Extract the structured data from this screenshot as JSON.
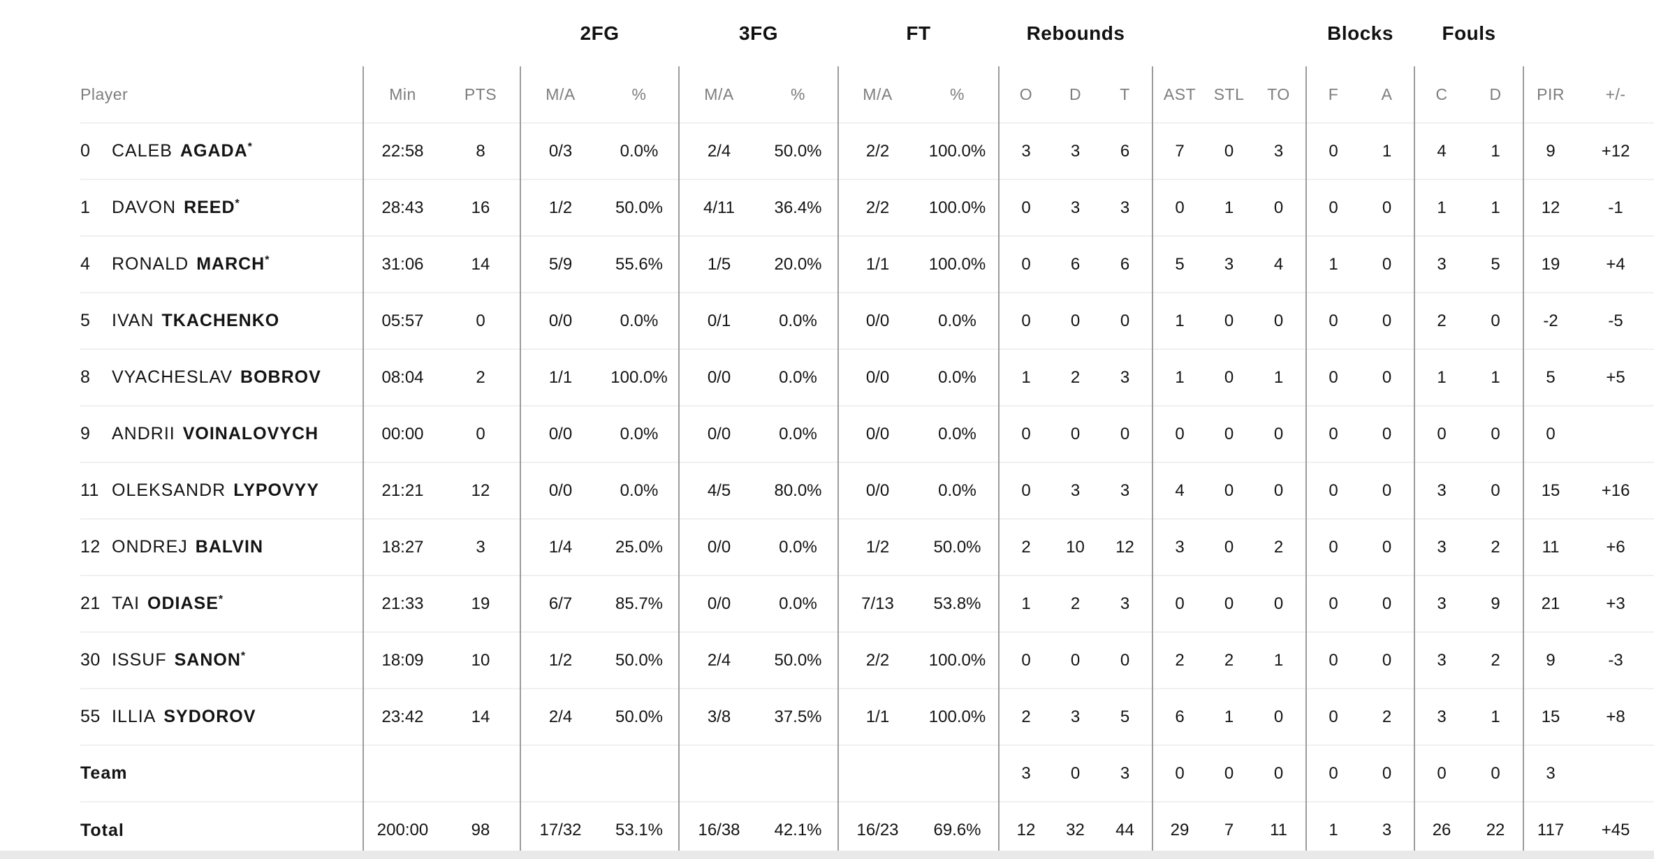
{
  "table": {
    "groups": [
      {
        "label": ""
      },
      {
        "label": "2FG"
      },
      {
        "label": "3FG"
      },
      {
        "label": "FT"
      },
      {
        "label": "Rebounds"
      },
      {
        "label": ""
      },
      {
        "label": "Blocks"
      },
      {
        "label": "Fouls"
      },
      {
        "label": ""
      }
    ],
    "columns": [
      "Player",
      "Min",
      "PTS",
      "M/A",
      "%",
      "M/A",
      "%",
      "M/A",
      "%",
      "O",
      "D",
      "T",
      "AST",
      "STL",
      "TO",
      "F",
      "A",
      "C",
      "D",
      "PIR",
      "+/-"
    ],
    "rows": [
      {
        "num": "0",
        "first": "CALEB",
        "last": "AGADA",
        "star": "*",
        "stats": [
          "22:58",
          "8",
          "0/3",
          "0.0%",
          "2/4",
          "50.0%",
          "2/2",
          "100.0%",
          "3",
          "3",
          "6",
          "7",
          "0",
          "3",
          "0",
          "1",
          "4",
          "1",
          "9",
          "+12"
        ]
      },
      {
        "num": "1",
        "first": "DAVON",
        "last": "REED",
        "star": "*",
        "stats": [
          "28:43",
          "16",
          "1/2",
          "50.0%",
          "4/11",
          "36.4%",
          "2/2",
          "100.0%",
          "0",
          "3",
          "3",
          "0",
          "1",
          "0",
          "0",
          "0",
          "1",
          "1",
          "12",
          "-1"
        ]
      },
      {
        "num": "4",
        "first": "RONALD",
        "last": "MARCH",
        "star": "*",
        "stats": [
          "31:06",
          "14",
          "5/9",
          "55.6%",
          "1/5",
          "20.0%",
          "1/1",
          "100.0%",
          "0",
          "6",
          "6",
          "5",
          "3",
          "4",
          "1",
          "0",
          "3",
          "5",
          "19",
          "+4"
        ]
      },
      {
        "num": "5",
        "first": "IVAN",
        "last": "TKACHENKO",
        "star": "",
        "stats": [
          "05:57",
          "0",
          "0/0",
          "0.0%",
          "0/1",
          "0.0%",
          "0/0",
          "0.0%",
          "0",
          "0",
          "0",
          "1",
          "0",
          "0",
          "0",
          "0",
          "2",
          "0",
          "-2",
          "-5"
        ]
      },
      {
        "num": "8",
        "first": "VYACHESLAV",
        "last": "BOBROV",
        "star": "",
        "stats": [
          "08:04",
          "2",
          "1/1",
          "100.0%",
          "0/0",
          "0.0%",
          "0/0",
          "0.0%",
          "1",
          "2",
          "3",
          "1",
          "0",
          "1",
          "0",
          "0",
          "1",
          "1",
          "5",
          "+5"
        ]
      },
      {
        "num": "9",
        "first": "ANDRII",
        "last": "VOINALOVYCH",
        "star": "",
        "stats": [
          "00:00",
          "0",
          "0/0",
          "0.0%",
          "0/0",
          "0.0%",
          "0/0",
          "0.0%",
          "0",
          "0",
          "0",
          "0",
          "0",
          "0",
          "0",
          "0",
          "0",
          "0",
          "0",
          ""
        ]
      },
      {
        "num": "11",
        "first": "OLEKSANDR",
        "last": "LYPOVYY",
        "star": "",
        "stats": [
          "21:21",
          "12",
          "0/0",
          "0.0%",
          "4/5",
          "80.0%",
          "0/0",
          "0.0%",
          "0",
          "3",
          "3",
          "4",
          "0",
          "0",
          "0",
          "0",
          "3",
          "0",
          "15",
          "+16"
        ]
      },
      {
        "num": "12",
        "first": "ONDREJ",
        "last": "BALVIN",
        "star": "",
        "stats": [
          "18:27",
          "3",
          "1/4",
          "25.0%",
          "0/0",
          "0.0%",
          "1/2",
          "50.0%",
          "2",
          "10",
          "12",
          "3",
          "0",
          "2",
          "0",
          "0",
          "3",
          "2",
          "11",
          "+6"
        ]
      },
      {
        "num": "21",
        "first": "TAI",
        "last": "ODIASE",
        "star": "*",
        "stats": [
          "21:33",
          "19",
          "6/7",
          "85.7%",
          "0/0",
          "0.0%",
          "7/13",
          "53.8%",
          "1",
          "2",
          "3",
          "0",
          "0",
          "0",
          "0",
          "0",
          "3",
          "9",
          "21",
          "+3"
        ]
      },
      {
        "num": "30",
        "first": "ISSUF",
        "last": "SANON",
        "star": "*",
        "stats": [
          "18:09",
          "10",
          "1/2",
          "50.0%",
          "2/4",
          "50.0%",
          "2/2",
          "100.0%",
          "0",
          "0",
          "0",
          "2",
          "2",
          "1",
          "0",
          "0",
          "3",
          "2",
          "9",
          "-3"
        ]
      },
      {
        "num": "55",
        "first": "ILLIA",
        "last": "SYDOROV",
        "star": "",
        "stats": [
          "23:42",
          "14",
          "2/4",
          "50.0%",
          "3/8",
          "37.5%",
          "1/1",
          "100.0%",
          "2",
          "3",
          "5",
          "6",
          "1",
          "0",
          "0",
          "2",
          "3",
          "1",
          "15",
          "+8"
        ]
      },
      {
        "num": "",
        "first": "",
        "last": "Team",
        "star": "",
        "stats": [
          "",
          "",
          "",
          "",
          "",
          "",
          "",
          "",
          "3",
          "0",
          "3",
          "0",
          "0",
          "0",
          "0",
          "0",
          "0",
          "0",
          "3",
          ""
        ]
      },
      {
        "num": "",
        "first": "",
        "last": "Total",
        "star": "",
        "stats": [
          "200:00",
          "98",
          "17/32",
          "53.1%",
          "16/38",
          "42.1%",
          "16/23",
          "69.6%",
          "12",
          "32",
          "44",
          "29",
          "7",
          "11",
          "1",
          "3",
          "26",
          "22",
          "117",
          "+45"
        ]
      }
    ]
  }
}
